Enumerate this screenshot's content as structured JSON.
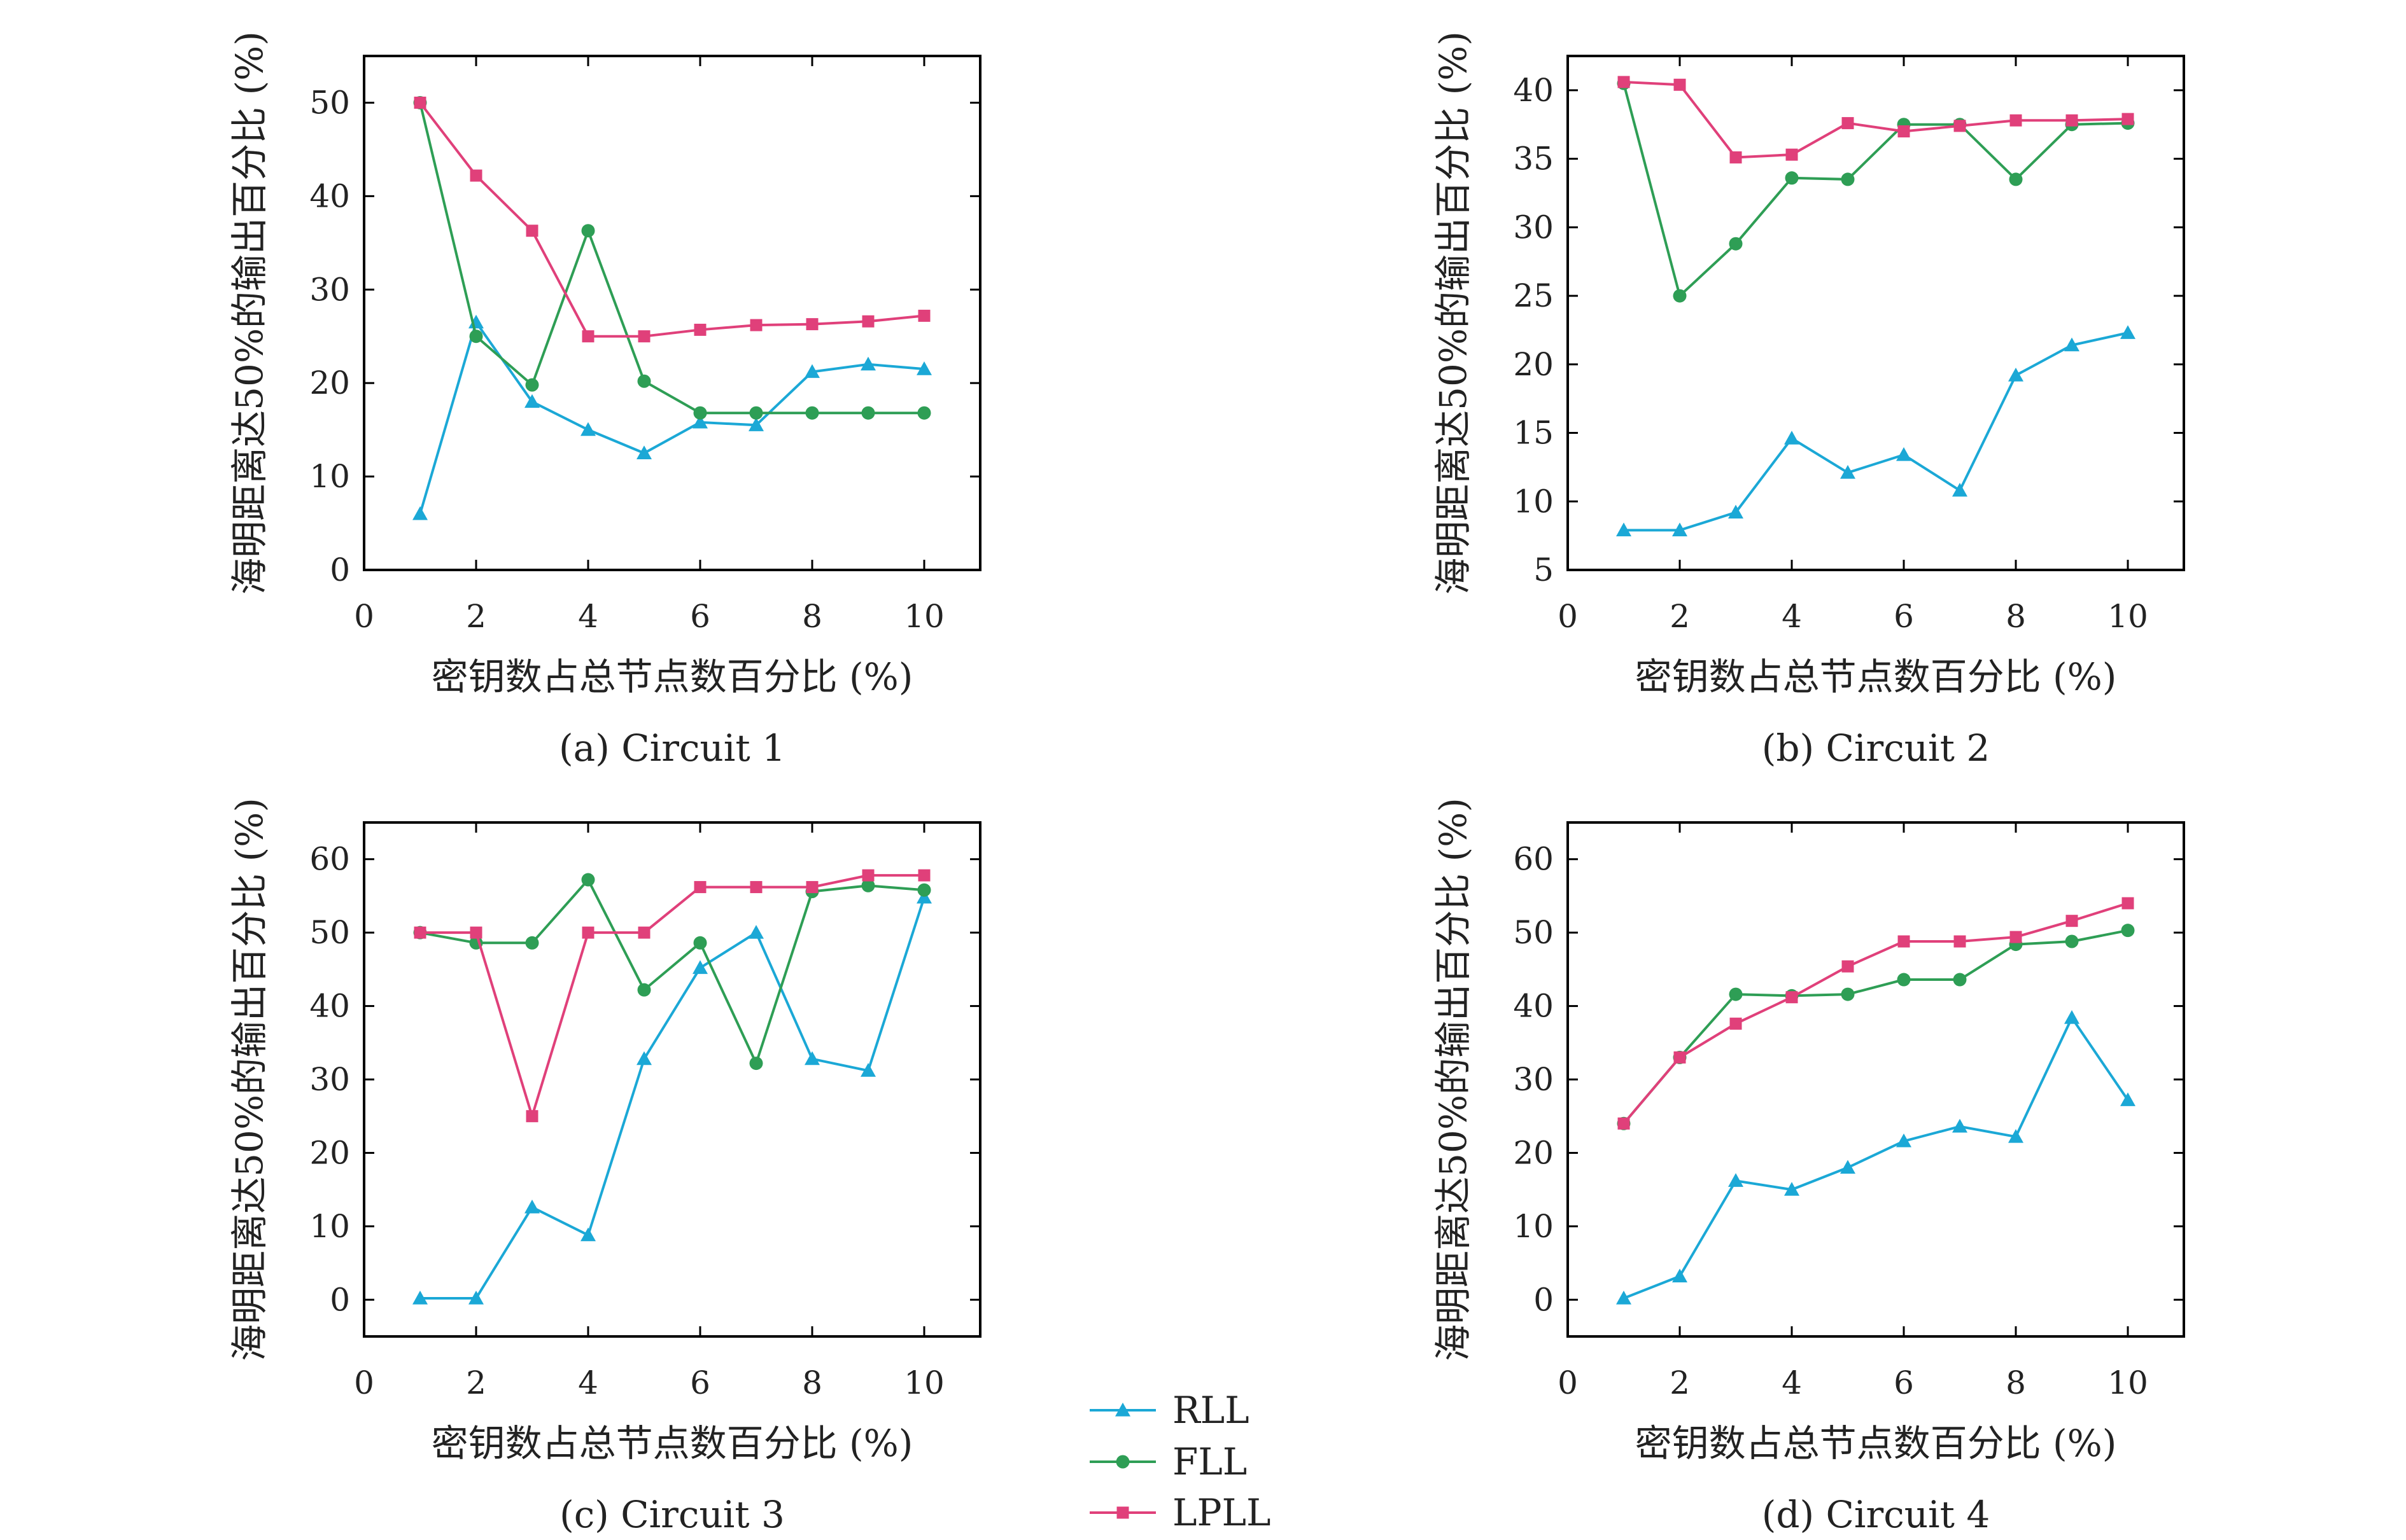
{
  "legend": [
    {
      "name": "RLL",
      "color": "#1ba8d6",
      "marker": "triangle"
    },
    {
      "name": "FLL",
      "color": "#2e9e55",
      "marker": "circle"
    },
    {
      "name": "LPLL",
      "color": "#e0407a",
      "marker": "square"
    }
  ],
  "chart_data": [
    {
      "type": "line",
      "caption": "(a) Circuit 1",
      "xlabel": "密钥数占总节点数百分比 (%)",
      "ylabel": "海明距离达50%的输出百分比 (%)",
      "xlim": [
        0,
        11
      ],
      "ylim": [
        0,
        55
      ],
      "xticks": [
        "0",
        "2",
        "4",
        "6",
        "8",
        "10"
      ],
      "yticks": [
        "0",
        "10",
        "20",
        "30",
        "40",
        "50"
      ],
      "x": [
        1,
        2,
        3,
        4,
        5,
        6,
        7,
        8,
        9,
        10
      ],
      "series": [
        {
          "name": "RLL",
          "values": [
            6,
            26.5,
            18,
            15,
            12.5,
            15.8,
            15.5,
            21.2,
            22,
            21.5
          ]
        },
        {
          "name": "FLL",
          "values": [
            50,
            25,
            19.8,
            36.3,
            20.2,
            16.8,
            16.8,
            16.8,
            16.8,
            16.8
          ]
        },
        {
          "name": "LPLL",
          "values": [
            50,
            42.2,
            36.3,
            25,
            25,
            25.7,
            26.2,
            26.3,
            26.6,
            27.2
          ]
        }
      ]
    },
    {
      "type": "line",
      "caption": "(b) Circuit 2",
      "xlabel": "密钥数占总节点数百分比 (%)",
      "ylabel": "海明距离达50%的输出百分比 (%)",
      "xlim": [
        0,
        11
      ],
      "ylim": [
        5,
        42.5
      ],
      "xticks": [
        "0",
        "2",
        "4",
        "6",
        "8",
        "10"
      ],
      "yticks": [
        "5",
        "10",
        "15",
        "20",
        "25",
        "30",
        "35",
        "40"
      ],
      "x": [
        1,
        2,
        3,
        4,
        5,
        6,
        7,
        8,
        9,
        10
      ],
      "series": [
        {
          "name": "RLL",
          "values": [
            7.9,
            7.9,
            9.2,
            14.6,
            12.1,
            13.4,
            10.8,
            19.2,
            21.4,
            22.3
          ]
        },
        {
          "name": "FLL",
          "values": [
            40.5,
            25,
            28.8,
            33.6,
            33.5,
            37.5,
            37.5,
            33.5,
            37.5,
            37.6
          ]
        },
        {
          "name": "LPLL",
          "values": [
            40.6,
            40.4,
            35.1,
            35.3,
            37.6,
            37,
            37.4,
            37.8,
            37.8,
            37.9
          ]
        }
      ]
    },
    {
      "type": "line",
      "caption": "(c) Circuit 3",
      "xlabel": "密钥数占总节点数百分比 (%)",
      "ylabel": "海明距离达50%的输出百分比 (%)",
      "xlim": [
        0,
        11
      ],
      "ylim": [
        -5,
        65
      ],
      "xticks": [
        "0",
        "2",
        "4",
        "6",
        "8",
        "10"
      ],
      "yticks": [
        "0",
        "10",
        "20",
        "30",
        "40",
        "50",
        "60"
      ],
      "x": [
        1,
        2,
        3,
        4,
        5,
        6,
        7,
        8,
        9,
        10
      ],
      "series": [
        {
          "name": "RLL",
          "values": [
            0.2,
            0.2,
            12.6,
            8.8,
            32.8,
            45.2,
            50,
            32.8,
            31.2,
            54.8
          ]
        },
        {
          "name": "FLL",
          "values": [
            50,
            48.6,
            48.6,
            57.2,
            42.2,
            48.6,
            32.2,
            55.6,
            56.4,
            55.8
          ]
        },
        {
          "name": "LPLL",
          "values": [
            50,
            50,
            25,
            50,
            50,
            56.2,
            56.2,
            56.2,
            57.8,
            57.8
          ]
        }
      ]
    },
    {
      "type": "line",
      "caption": "(d) Circuit 4",
      "xlabel": "密钥数占总节点数百分比 (%)",
      "ylabel": "海明距离达50%的输出百分比 (%)",
      "xlim": [
        0,
        11
      ],
      "ylim": [
        -5,
        65
      ],
      "xticks": [
        "0",
        "2",
        "4",
        "6",
        "8",
        "10"
      ],
      "yticks": [
        "0",
        "10",
        "20",
        "30",
        "40",
        "50",
        "60"
      ],
      "x": [
        1,
        2,
        3,
        4,
        5,
        6,
        7,
        8,
        9,
        10
      ],
      "series": [
        {
          "name": "RLL",
          "values": [
            0.2,
            3.2,
            16.2,
            15,
            18,
            21.6,
            23.6,
            22.2,
            38.4,
            27.2
          ]
        },
        {
          "name": "FLL",
          "values": [
            24,
            33,
            41.6,
            41.4,
            41.6,
            43.6,
            43.6,
            48.4,
            48.8,
            50.3
          ]
        },
        {
          "name": "LPLL",
          "values": [
            24,
            33,
            37.6,
            41.2,
            45.4,
            48.8,
            48.8,
            49.4,
            51.6,
            54
          ]
        }
      ]
    }
  ]
}
